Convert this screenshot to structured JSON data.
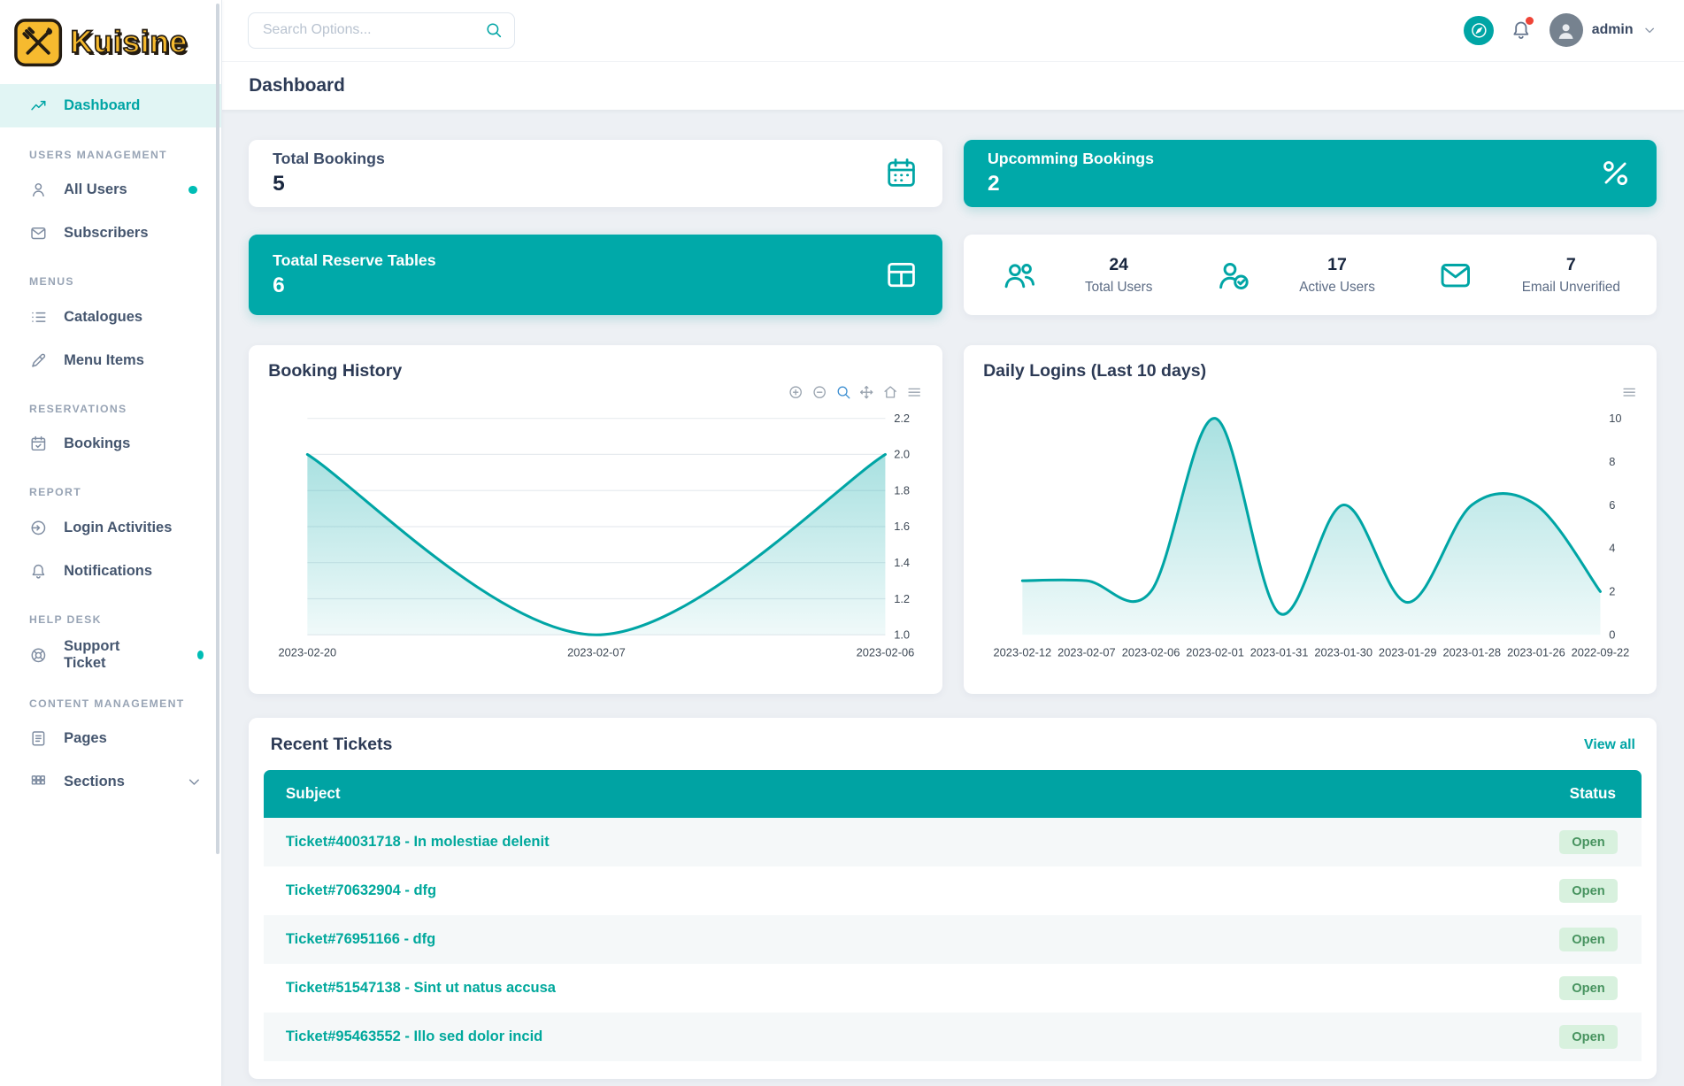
{
  "brand": {
    "name": "Kuisine",
    "logo_icon": "utensils-logo-icon"
  },
  "topbar": {
    "search_placeholder": "Search Options...",
    "username": "admin",
    "icons": [
      "compass-icon",
      "bell-icon",
      "chevron-down-icon"
    ],
    "notification_dot": true
  },
  "page": {
    "title": "Dashboard"
  },
  "colors": {
    "primary": "#00a5a5",
    "teal_card": "#00a9a9",
    "chart_line": "#00a5a5",
    "badge_bg": "#d8f1de",
    "badge_text": "#47935f",
    "link": "#00a89c",
    "notification_dot": "#ef4437",
    "logo_yellow": "#F6BA2F"
  },
  "sidebar": {
    "sections": [
      {
        "heading": "",
        "items": [
          {
            "label": "Dashboard",
            "icon": "dashboard-icon",
            "active": true
          }
        ]
      },
      {
        "heading": "USERS MANAGEMENT",
        "items": [
          {
            "label": "All Users",
            "icon": "users-icon",
            "dot": true
          },
          {
            "label": "Subscribers",
            "icon": "mail-icon"
          }
        ]
      },
      {
        "heading": "MENUS",
        "items": [
          {
            "label": "Catalogues",
            "icon": "list-icon"
          },
          {
            "label": "Menu Items",
            "icon": "pen-icon"
          }
        ]
      },
      {
        "heading": "RESERVATIONS",
        "items": [
          {
            "label": "Bookings",
            "icon": "calendar-check-icon"
          }
        ]
      },
      {
        "heading": "REPORT",
        "items": [
          {
            "label": "Login Activities",
            "icon": "login-icon"
          },
          {
            "label": "Notifications",
            "icon": "bell-icon"
          }
        ]
      },
      {
        "heading": "HELP DESK",
        "items": [
          {
            "label": "Support Ticket",
            "icon": "support-icon",
            "dot": true
          }
        ]
      },
      {
        "heading": "CONTENT MANAGEMENT",
        "items": [
          {
            "label": "Pages",
            "icon": "pages-icon"
          },
          {
            "label": "Sections",
            "icon": "sections-icon",
            "chevron": true
          }
        ]
      }
    ]
  },
  "stats": {
    "cards": [
      {
        "label": "Total Bookings",
        "value": "5",
        "icon": "calendar-icon",
        "variant": "light"
      },
      {
        "label": "Upcomming Bookings",
        "value": "2",
        "icon": "percent-icon",
        "variant": "teal"
      },
      {
        "label": "Toatal Reserve Tables",
        "value": "6",
        "icon": "table-icon",
        "variant": "teal"
      }
    ],
    "user_stats": [
      {
        "value": "24",
        "label": "Total Users",
        "icon": "users-group-icon"
      },
      {
        "value": "17",
        "label": "Active Users",
        "icon": "user-check-icon"
      },
      {
        "value": "7",
        "label": "Email Unverified",
        "icon": "envelope-icon"
      }
    ]
  },
  "charts": {
    "modebar_booking": [
      "zoom-in-icon",
      "zoom-out-icon",
      "zoom-select-icon",
      "pan-icon",
      "home-icon",
      "menu-icon"
    ],
    "modebar_logins": [
      "menu-icon"
    ],
    "active_tool": "zoom-select-icon"
  },
  "chart_data": [
    {
      "type": "area",
      "title": "Booking History",
      "x": [
        "2023-02-20",
        "2023-02-07",
        "2023-02-06"
      ],
      "values": [
        2.0,
        1.0,
        2.0
      ],
      "ylim": [
        1.0,
        2.2
      ],
      "yticks": [
        1.0,
        1.2,
        1.4,
        1.6,
        1.8,
        2.0,
        2.2
      ],
      "yaxis_position": "right",
      "grid": true,
      "legend": "none"
    },
    {
      "type": "area",
      "title": "Daily Logins (Last 10 days)",
      "x": [
        "2023-02-12",
        "2023-02-07",
        "2023-02-06",
        "2023-02-01",
        "2023-01-31",
        "2023-01-30",
        "2023-01-29",
        "2023-01-28",
        "2023-01-26",
        "2022-09-22"
      ],
      "values": [
        2.5,
        2.5,
        2.0,
        10.0,
        1.0,
        6.0,
        1.5,
        6.0,
        6.0,
        2.0
      ],
      "ylim": [
        0,
        10
      ],
      "yticks": [
        0,
        2,
        4,
        6,
        8,
        10
      ],
      "yaxis_position": "right",
      "grid": false,
      "legend": "none"
    }
  ],
  "tickets": {
    "title": "Recent Tickets",
    "view_all": "View all",
    "columns": [
      "Subject",
      "Status"
    ],
    "rows": [
      {
        "subject": "Ticket#40031718 - In molestiae delenit",
        "status": "Open"
      },
      {
        "subject": "Ticket#70632904 - dfg",
        "status": "Open"
      },
      {
        "subject": "Ticket#76951166 - dfg",
        "status": "Open"
      },
      {
        "subject": "Ticket#51547138 - Sint ut natus accusa",
        "status": "Open"
      },
      {
        "subject": "Ticket#95463552 - Illo sed dolor incid",
        "status": "Open"
      }
    ]
  }
}
